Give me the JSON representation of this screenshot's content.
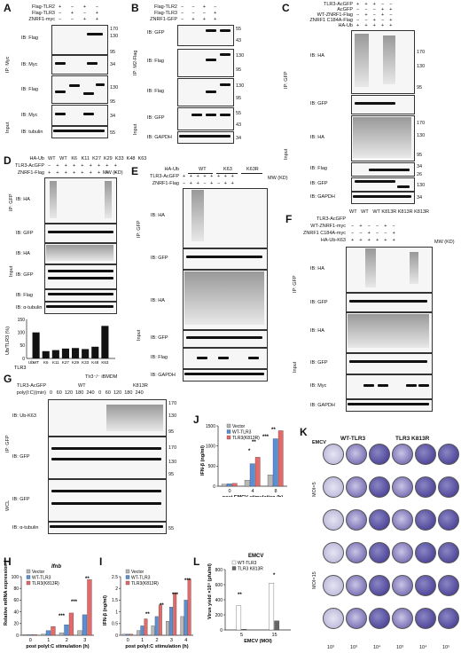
{
  "panels": {
    "A": {
      "label": "A",
      "rows": [
        "Flag-TLR2",
        "Flag-TLR3",
        "ZNRF1-myc"
      ],
      "signs": [
        [
          "+",
          "-",
          "+",
          "-"
        ],
        [
          "-",
          "+",
          "-",
          "+"
        ],
        [
          "-",
          "-",
          "+",
          "+"
        ]
      ],
      "side_ip": "IP: Myc",
      "side_input": "Input",
      "blots": [
        "IB: Flag",
        "IB: Myc",
        "IB: Flag",
        "IB: Myc",
        "IB: tubulin"
      ],
      "mw": [
        "170",
        "130",
        "95",
        "34",
        "130",
        "95",
        "34",
        "55"
      ]
    },
    "B": {
      "label": "B",
      "rows": [
        "Flag-TLR2",
        "Flag-TLR3",
        "ZNRF1-GFP"
      ],
      "side_ip": "IP: M2-Flag",
      "side_input": "Input",
      "blots": [
        "IB: GFP",
        "IB: Flag",
        "IB: Flag",
        "IB: GFP",
        "IB: GAPDH"
      ],
      "mw": [
        "55",
        "43",
        "130",
        "95",
        "130",
        "95",
        "55",
        "43",
        "34"
      ]
    },
    "C": {
      "label": "C",
      "rows": [
        "TLR3-AcGFP",
        "AcGFP",
        "WT-ZNRF1-Flag",
        "ZNRF1 C184A-Flag",
        "HA-Ub"
      ],
      "side_ip": "IP: GFP",
      "side_input": "Input",
      "blots": [
        "IB: HA",
        "IB: GFP",
        "IB: HA",
        "IB: Flag",
        "IB: GFP",
        "IB: GAPDH"
      ],
      "mw": [
        "170",
        "130",
        "95",
        "170",
        "130",
        "95",
        "34",
        "26",
        "130",
        "34"
      ]
    },
    "D": {
      "label": "D",
      "rows": [
        "HA-Ub",
        "TLR3-AcGFP",
        "ZNRF1-Flag"
      ],
      "lanes": [
        "WT",
        "WT",
        "K6",
        "K11",
        "K27",
        "K29",
        "K33",
        "K48",
        "K63"
      ],
      "side_ip": "IP: GFP",
      "side_input": "Input",
      "blots": [
        "IB: HA",
        "IB: GFP",
        "IB: HA",
        "IB: GFP",
        "IB: Flag",
        "IB: α-tubulin"
      ],
      "mw_head": "MW (KD)",
      "bar_ylabel": "Ub/TLR3 (%)",
      "bar_x": [
        "Ub",
        "WT",
        "WT",
        "K6",
        "K11",
        "K27",
        "K29",
        "K33",
        "K48",
        "K63"
      ],
      "bar_tlr3_label": "TLR3",
      "bar_yticks": [
        "150",
        "100",
        "50",
        "0"
      ]
    },
    "E": {
      "label": "E",
      "rows": [
        "HA-Ub",
        "TLR3-AcGFP",
        "ZNRF1-Flag"
      ],
      "groups": [
        "WT",
        "K63",
        "K63R"
      ],
      "side_ip": "IP: GFP",
      "side_input": "Input",
      "blots": [
        "IB: HA",
        "IB: GFP",
        "IB: HA",
        "IB: GFP",
        "IB: Flag",
        "IB: GAPDH"
      ],
      "mw_head": "MW (KD)"
    },
    "F": {
      "label": "F",
      "rows": [
        "TLR3-AcGFP",
        "WT-ZNRF1-myc",
        "ZNRF1 C184A-myc",
        "HA-Ub-K63"
      ],
      "lanes": [
        "WT",
        "WT",
        "WT",
        "K813R",
        "K813R",
        "K813R"
      ],
      "side_ip": "IP: GFP",
      "side_input": "Input",
      "blots": [
        "IB: HA",
        "IB: GFP",
        "IB: HA",
        "IB: GFP",
        "IB: Myc",
        "IB: GAPDH"
      ],
      "mw_head": "MW (KD)"
    },
    "G": {
      "label": "G",
      "title": "Tlr3⁻/⁻ iBMDM",
      "rows": [
        "TLR3-AcGFP",
        "poly(I:C)(min)"
      ],
      "groups": [
        "WT",
        "K813R"
      ],
      "times": [
        "0",
        "60",
        "120",
        "180",
        "240",
        "0",
        "60",
        "120",
        "180",
        "240"
      ],
      "side_ip": "IP: GFP",
      "side_wcl": "WCL",
      "blots": [
        "IB: Ub-K63",
        "IB: GFP",
        "IB: GFP",
        "IB: α-tubulin"
      ],
      "mw": [
        "170",
        "130",
        "95",
        "170",
        "130",
        "95",
        "55"
      ]
    },
    "H": {
      "label": "H",
      "gene": "Ifnb",
      "ylabel": "Relative mRNA expression (Fold change)",
      "xlabel": "post polyI:C stimulation (h)",
      "legend": [
        "Vector",
        "WT-TLR3",
        "TLR3(K813R)"
      ]
    },
    "I": {
      "label": "I",
      "ylabel": "IFN-β (ng/ml)",
      "xlabel": "post polyI:C stimulation (h)",
      "legend": [
        "Vector",
        "WT-TLR3",
        "TLR3(K813R)"
      ]
    },
    "J": {
      "label": "J",
      "ylabel": "IFN-β (ng/ml)",
      "xlabel": "post EMCV stimulation (h)",
      "legend": [
        "Vector",
        "WT-TLR3",
        "TLR3(K813R)"
      ]
    },
    "K": {
      "label": "K",
      "emcv": "EMCV",
      "col_heads": [
        "WT-TLR3",
        "TLR3 K813R"
      ],
      "moi": [
        "MOI=5",
        "MOI=15"
      ],
      "dilutions": [
        "10³",
        "10³",
        "10⁴",
        "10³",
        "10⁴",
        "10⁵"
      ]
    },
    "L": {
      "label": "L",
      "title": "EMCV",
      "ylabel": "Virus yield ×10⁵ (pfu/ml)",
      "xlabel": "EMCV (MOI)",
      "legend": [
        "WT-TLR3",
        "TLR3 K813R"
      ]
    }
  },
  "sig": {
    "two": "**",
    "three": "***",
    "one": "*"
  },
  "chart_data": [
    {
      "type": "bar",
      "panel": "D",
      "title": "",
      "ylabel": "Ub/TLR3 (%)",
      "categories": [
        "WT",
        "K6",
        "K11",
        "K27",
        "K29",
        "K33",
        "K48",
        "K63"
      ],
      "values": [
        100,
        28,
        32,
        38,
        40,
        36,
        45,
        125
      ],
      "ylim": [
        0,
        150
      ]
    },
    {
      "type": "bar",
      "panel": "H",
      "ylabel": "Relative mRNA expression (Fold change)",
      "xlabel": "post polyI:C stimulation (h)",
      "categories": [
        "0",
        "1",
        "2",
        "3"
      ],
      "series": [
        {
          "name": "Vector",
          "values": [
            1,
            2,
            4,
            8
          ]
        },
        {
          "name": "WT-TLR3",
          "values": [
            1,
            8,
            18,
            35
          ]
        },
        {
          "name": "TLR3(K813R)",
          "values": [
            1,
            15,
            38,
            95
          ]
        }
      ],
      "ylim": [
        0,
        100
      ]
    },
    {
      "type": "bar",
      "panel": "I",
      "ylabel": "IFN-β (ng/ml)",
      "xlabel": "post polyI:C stimulation (h)",
      "categories": [
        "0",
        "1",
        "2",
        "3",
        "4"
      ],
      "series": [
        {
          "name": "Vector",
          "values": [
            0.05,
            0.2,
            0.4,
            0.6,
            0.8
          ]
        },
        {
          "name": "WT-TLR3",
          "values": [
            0.05,
            0.4,
            0.8,
            1.2,
            1.5
          ]
        },
        {
          "name": "TLR3(K813R)",
          "values": [
            0.05,
            0.7,
            1.3,
            1.8,
            2.4
          ]
        }
      ],
      "ylim": [
        0,
        2.5
      ]
    },
    {
      "type": "bar",
      "panel": "J",
      "ylabel": "IFN-β (ng/ml)",
      "xlabel": "post EMCV stimulation (h)",
      "categories": [
        "0",
        "4",
        "8"
      ],
      "series": [
        {
          "name": "Vector",
          "values": [
            50,
            150,
            280
          ]
        },
        {
          "name": "WT-TLR3",
          "values": [
            60,
            560,
            1180
          ]
        },
        {
          "name": "TLR3(K813R)",
          "values": [
            70,
            720,
            1380
          ]
        }
      ],
      "ylim": [
        0,
        1500
      ]
    },
    {
      "type": "bar",
      "panel": "L",
      "ylabel": "Virus yield ×10⁵ (pfu/ml)",
      "xlabel": "EMCV (MOI)",
      "categories": [
        "5",
        "15"
      ],
      "series": [
        {
          "name": "WT-TLR3",
          "values": [
            320,
            620
          ]
        },
        {
          "name": "TLR3 K813R",
          "values": [
            10,
            120
          ]
        }
      ],
      "ylim": [
        0,
        800
      ]
    }
  ],
  "colors": {
    "vector": "#b8b8b8",
    "wt": "#5a8fd8",
    "k813r": "#e46a6a",
    "black": "#111111"
  }
}
